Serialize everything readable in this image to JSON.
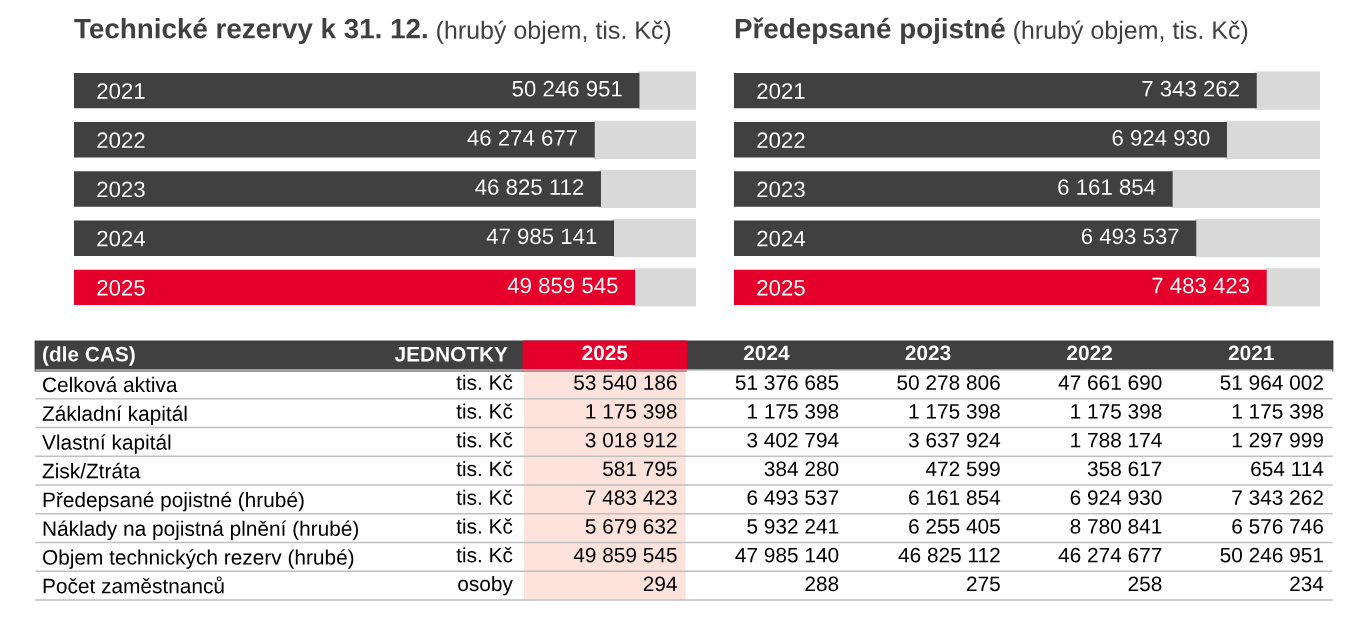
{
  "chart_data": [
    {
      "type": "bar",
      "orientation": "horizontal",
      "title": "Technické rezervy k 31. 12.",
      "subtitle": "(hrubý objem, tis. Kč)",
      "categories": [
        "2021",
        "2022",
        "2023",
        "2024",
        "2025"
      ],
      "values": [
        50246951,
        46274677,
        46825112,
        47985141,
        49859545
      ],
      "colors": [
        "#404040",
        "#404040",
        "#404040",
        "#404040",
        "#e4002b"
      ],
      "value_labels": [
        "50 246 951",
        "46 274 677",
        "46 825 112",
        "47 985 141",
        "49 859 545"
      ]
    },
    {
      "type": "bar",
      "orientation": "horizontal",
      "title": "Předepsané pojistné",
      "subtitle": "(hrubý objem, tis. Kč)",
      "categories": [
        "2021",
        "2022",
        "2023",
        "2024",
        "2025"
      ],
      "values": [
        7343262,
        6924930,
        6161854,
        6493537,
        7483423
      ],
      "colors": [
        "#404040",
        "#404040",
        "#404040",
        "#404040",
        "#e4002b"
      ],
      "value_labels": [
        "7 343 262",
        "6 924 930",
        "6 161 854",
        "6 493 537",
        "7 483 423"
      ]
    },
    {
      "type": "heatmap",
      "ylabel": "(dle CAS)",
      "y2label": "JEDNOTKY",
      "categories": [
        "2025",
        "2024",
        "2023",
        "2022",
        "2021"
      ],
      "y_categories": [
        "Celková aktiva",
        "Základní kapitál",
        "Vlastní kapitál",
        "Zisk/Ztráta",
        "Předepsané pojistné (hrubé)",
        "Náklady na pojistná plnění (hrubé)",
        "Objem technických rezerv (hrubé)",
        "Počet zaměstnanců"
      ],
      "y2_categories": [
        "tis. Kč",
        "tis. Kč",
        "tis. Kč",
        "tis. Kč",
        "tis. Kč",
        "tis. Kč",
        "tis. Kč",
        "osoby"
      ],
      "cells": [
        [
          53540186,
          51376685,
          50278806,
          47661690,
          51964002
        ],
        [
          1175398,
          1175398,
          1175398,
          1175398,
          1175398
        ],
        [
          3018912,
          3402794,
          3637924,
          1788174,
          1297999
        ],
        [
          581795,
          384280,
          472599,
          358617,
          654114
        ],
        [
          7483423,
          6493537,
          6161854,
          6924930,
          7343262
        ],
        [
          5679632,
          5932241,
          6255405,
          8780841,
          6576746
        ],
        [
          49859545,
          47985140,
          46825112,
          46274677,
          50246951
        ],
        [
          294,
          288,
          275,
          258,
          234
        ]
      ],
      "cell_labels": [
        [
          "53 540 186",
          "51 376 685",
          "50 278 806",
          "47 661 690",
          "51 964 002"
        ],
        [
          "1 175 398",
          "1 175 398",
          "1 175 398",
          "1 175 398",
          "1 175 398"
        ],
        [
          "3 018 912",
          "3 402 794",
          "3 637 924",
          "1 788 174",
          "1 297 999"
        ],
        [
          "581 795",
          "384 280",
          "472 599",
          "358 617",
          "654 114"
        ],
        [
          "7 483 423",
          "6 493 537",
          "6 161 854",
          "6 924 930",
          "7 343 262"
        ],
        [
          "5 679 632",
          "5 932 241",
          "6 255 405",
          "8 780 841",
          "6 576 746"
        ],
        [
          "49 859 545",
          "47 985 140",
          "46 825 112",
          "46 274 677",
          "50 246 951"
        ],
        [
          "294",
          "288",
          "275",
          "258",
          "234"
        ]
      ],
      "bands": [
        {
          "axis": "x",
          "from": "2025",
          "to": "2025",
          "color": "#fde3dc"
        }
      ]
    }
  ]
}
